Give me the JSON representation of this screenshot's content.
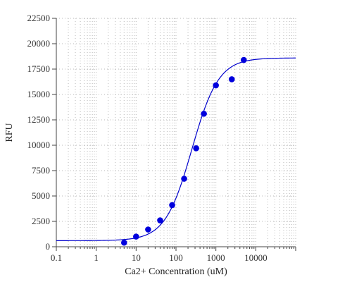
{
  "chart_data": {
    "type": "scatter",
    "xlabel": "Ca2+ Concentration (uM)",
    "ylabel": "RFU",
    "x_scale": "log",
    "xlim": [
      0.1,
      100000
    ],
    "ylim": [
      0,
      22500
    ],
    "x_ticks": [
      0.1,
      1,
      10,
      100,
      1000,
      10000
    ],
    "x_tick_labels": [
      "0.1",
      "1",
      "10",
      "100",
      "1000",
      "10000"
    ],
    "y_ticks": [
      0,
      2500,
      5000,
      7500,
      10000,
      12500,
      15000,
      17500,
      20000,
      22500
    ],
    "y_tick_labels": [
      "0",
      "2500",
      "5000",
      "7500",
      "10000",
      "12500",
      "15000",
      "17500",
      "20000",
      "22500"
    ],
    "grid": true,
    "points": {
      "x": [
        5,
        10,
        20,
        40,
        80,
        160,
        320,
        500,
        1000,
        2500,
        5000
      ],
      "y": [
        400,
        1000,
        1700,
        2600,
        4100,
        6700,
        9700,
        13100,
        15900,
        16500,
        18400
      ],
      "color": "#0000dd"
    },
    "fit_curve": {
      "model": "4-parameter logistic",
      "bottom": 600,
      "top": 18600,
      "ec50": 250,
      "hill": 1.3,
      "color": "#0000cc"
    }
  }
}
